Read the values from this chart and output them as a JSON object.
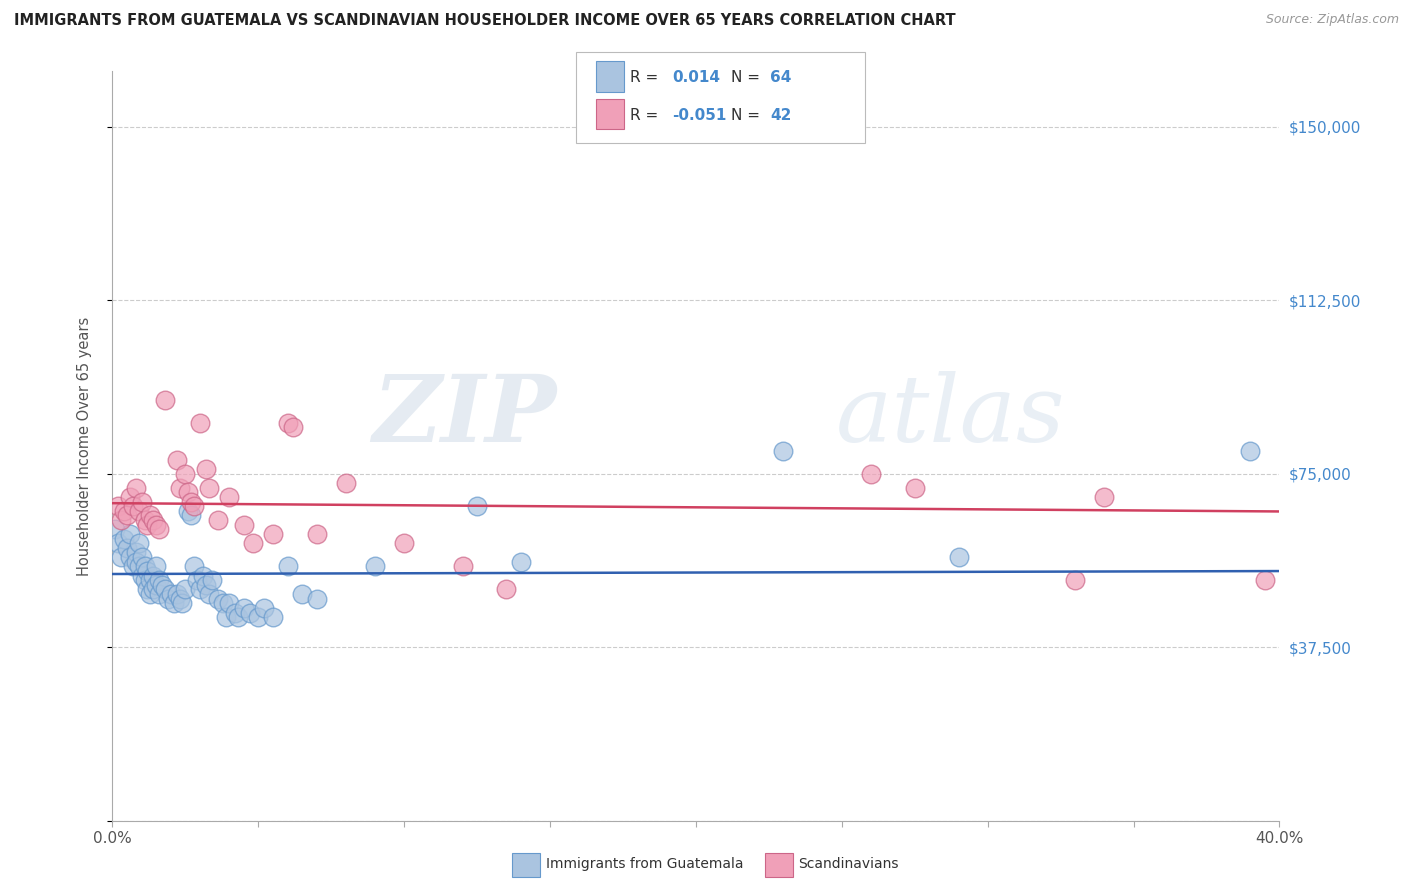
{
  "title": "IMMIGRANTS FROM GUATEMALA VS SCANDINAVIAN HOUSEHOLDER INCOME OVER 65 YEARS CORRELATION CHART",
  "source": "Source: ZipAtlas.com",
  "ylabel": "Householder Income Over 65 years",
  "x_min": 0.0,
  "x_max": 0.4,
  "y_min": 0,
  "y_max": 162000,
  "yticks": [
    0,
    37500,
    75000,
    112500,
    150000
  ],
  "ytick_labels": [
    "",
    "$37,500",
    "$75,000",
    "$112,500",
    "$150,000"
  ],
  "xticks": [
    0.0,
    0.05,
    0.1,
    0.15,
    0.2,
    0.25,
    0.3,
    0.35,
    0.4
  ],
  "blue_color": "#aac4e0",
  "pink_color": "#f0a0b8",
  "blue_line_color": "#3060b0",
  "pink_line_color": "#d04060",
  "watermark_zip": "ZIP",
  "watermark_atlas": "atlas",
  "blue_R": 0.014,
  "pink_R": -0.051,
  "background_color": "#ffffff",
  "grid_color": "#cccccc",
  "title_color": "#222222",
  "right_tick_color": "#4488cc",
  "blue_dots": [
    [
      0.001,
      63000
    ],
    [
      0.002,
      60000
    ],
    [
      0.003,
      57000
    ],
    [
      0.004,
      61000
    ],
    [
      0.005,
      59000
    ],
    [
      0.006,
      62000
    ],
    [
      0.006,
      57000
    ],
    [
      0.007,
      55000
    ],
    [
      0.008,
      58000
    ],
    [
      0.008,
      56000
    ],
    [
      0.009,
      60000
    ],
    [
      0.009,
      55000
    ],
    [
      0.01,
      57000
    ],
    [
      0.01,
      53000
    ],
    [
      0.011,
      55000
    ],
    [
      0.011,
      52000
    ],
    [
      0.012,
      54000
    ],
    [
      0.012,
      50000
    ],
    [
      0.013,
      52000
    ],
    [
      0.013,
      49000
    ],
    [
      0.014,
      53000
    ],
    [
      0.014,
      50000
    ],
    [
      0.015,
      55000
    ],
    [
      0.015,
      51000
    ],
    [
      0.016,
      52000
    ],
    [
      0.016,
      49000
    ],
    [
      0.017,
      51000
    ],
    [
      0.018,
      50000
    ],
    [
      0.019,
      48000
    ],
    [
      0.02,
      49000
    ],
    [
      0.021,
      47000
    ],
    [
      0.022,
      49000
    ],
    [
      0.023,
      48000
    ],
    [
      0.024,
      47000
    ],
    [
      0.025,
      50000
    ],
    [
      0.026,
      67000
    ],
    [
      0.027,
      66000
    ],
    [
      0.028,
      55000
    ],
    [
      0.029,
      52000
    ],
    [
      0.03,
      50000
    ],
    [
      0.031,
      53000
    ],
    [
      0.032,
      51000
    ],
    [
      0.033,
      49000
    ],
    [
      0.034,
      52000
    ],
    [
      0.036,
      48000
    ],
    [
      0.038,
      47000
    ],
    [
      0.039,
      44000
    ],
    [
      0.04,
      47000
    ],
    [
      0.042,
      45000
    ],
    [
      0.043,
      44000
    ],
    [
      0.045,
      46000
    ],
    [
      0.047,
      45000
    ],
    [
      0.05,
      44000
    ],
    [
      0.052,
      46000
    ],
    [
      0.055,
      44000
    ],
    [
      0.06,
      55000
    ],
    [
      0.065,
      49000
    ],
    [
      0.07,
      48000
    ],
    [
      0.09,
      55000
    ],
    [
      0.125,
      68000
    ],
    [
      0.14,
      56000
    ],
    [
      0.23,
      80000
    ],
    [
      0.29,
      57000
    ],
    [
      0.39,
      80000
    ]
  ],
  "pink_dots": [
    [
      0.002,
      68000
    ],
    [
      0.003,
      65000
    ],
    [
      0.004,
      67000
    ],
    [
      0.005,
      66000
    ],
    [
      0.006,
      70000
    ],
    [
      0.007,
      68000
    ],
    [
      0.008,
      72000
    ],
    [
      0.009,
      67000
    ],
    [
      0.01,
      69000
    ],
    [
      0.011,
      65000
    ],
    [
      0.012,
      64000
    ],
    [
      0.013,
      66000
    ],
    [
      0.014,
      65000
    ],
    [
      0.015,
      64000
    ],
    [
      0.016,
      63000
    ],
    [
      0.018,
      91000
    ],
    [
      0.022,
      78000
    ],
    [
      0.023,
      72000
    ],
    [
      0.025,
      75000
    ],
    [
      0.026,
      71000
    ],
    [
      0.027,
      69000
    ],
    [
      0.028,
      68000
    ],
    [
      0.03,
      86000
    ],
    [
      0.032,
      76000
    ],
    [
      0.033,
      72000
    ],
    [
      0.036,
      65000
    ],
    [
      0.04,
      70000
    ],
    [
      0.045,
      64000
    ],
    [
      0.048,
      60000
    ],
    [
      0.055,
      62000
    ],
    [
      0.06,
      86000
    ],
    [
      0.062,
      85000
    ],
    [
      0.07,
      62000
    ],
    [
      0.08,
      73000
    ],
    [
      0.1,
      60000
    ],
    [
      0.12,
      55000
    ],
    [
      0.135,
      50000
    ],
    [
      0.26,
      75000
    ],
    [
      0.275,
      72000
    ],
    [
      0.33,
      52000
    ],
    [
      0.34,
      70000
    ],
    [
      0.395,
      52000
    ]
  ]
}
